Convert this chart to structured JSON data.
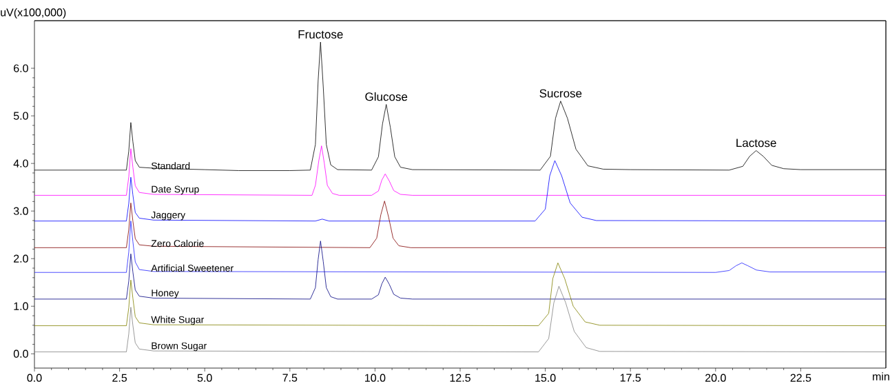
{
  "chart_data": {
    "type": "line",
    "xlabel": "min",
    "ylabel": "uV(x100,000)",
    "xlim": [
      0,
      25
    ],
    "ylim": [
      -0.3,
      7.0
    ],
    "xticks": [
      {
        "value": 0,
        "label": "0.0"
      },
      2.5,
      {
        "value": 5,
        "label": "5.0"
      },
      7.5,
      {
        "value": 10,
        "label": "10.0"
      },
      12.5,
      {
        "value": 15,
        "label": "15.0"
      },
      17.5,
      {
        "value": 20,
        "label": "20.0"
      },
      22.5
    ],
    "yticks": [
      {
        "value": 0,
        "label": "0.0"
      },
      {
        "value": 1,
        "label": "1.0"
      },
      {
        "value": 2,
        "label": "2.0"
      },
      {
        "value": 3,
        "label": "3.0"
      },
      {
        "value": 4,
        "label": "4.0"
      },
      {
        "value": 5,
        "label": "5.0"
      },
      {
        "value": 6,
        "label": "6.0"
      }
    ],
    "grid": false,
    "legend": false,
    "marker": "none",
    "line_style": "solid",
    "series": [
      {
        "name": "Standard",
        "color": "#000000",
        "x": [
          0,
          2.7,
          2.77,
          2.83,
          2.89,
          2.96,
          3.08,
          3.5,
          5.0,
          6.0,
          7.5,
          8.1,
          8.25,
          8.33,
          8.4,
          8.48,
          8.57,
          8.7,
          8.9,
          9.9,
          10.1,
          10.22,
          10.33,
          10.45,
          10.58,
          10.75,
          11.1,
          14.85,
          15.15,
          15.3,
          15.45,
          15.65,
          15.9,
          16.25,
          16.7,
          17.5,
          20.4,
          20.8,
          21.0,
          21.19,
          21.4,
          21.65,
          22.0,
          22.5,
          25
        ],
        "values": [
          3.86,
          3.86,
          4.26,
          4.86,
          4.46,
          4.06,
          3.92,
          3.9,
          3.87,
          3.85,
          3.85,
          3.86,
          4.4,
          5.74,
          6.55,
          5.61,
          4.4,
          3.97,
          3.87,
          3.86,
          4.14,
          4.83,
          5.24,
          4.76,
          4.14,
          3.92,
          3.87,
          3.86,
          4.15,
          4.95,
          5.31,
          4.95,
          4.3,
          3.95,
          3.88,
          3.87,
          3.86,
          3.94,
          4.15,
          4.27,
          4.15,
          3.96,
          3.89,
          3.87,
          3.87
        ]
      },
      {
        "name": "Date Syrup",
        "color": "#ff00ff",
        "x": [
          0,
          2.7,
          2.77,
          2.83,
          2.89,
          2.96,
          3.08,
          3.5,
          8.15,
          8.25,
          8.35,
          8.43,
          8.51,
          8.6,
          8.75,
          8.95,
          9.9,
          10.1,
          10.2,
          10.3,
          10.42,
          10.55,
          10.75,
          11.1,
          25
        ],
        "values": [
          3.33,
          3.33,
          3.72,
          4.31,
          3.92,
          3.53,
          3.39,
          3.35,
          3.33,
          3.54,
          4.06,
          4.37,
          4.01,
          3.54,
          3.37,
          3.33,
          3.33,
          3.42,
          3.65,
          3.78,
          3.63,
          3.43,
          3.35,
          3.33,
          3.33
        ]
      },
      {
        "name": "Jaggery",
        "color": "#0000ff",
        "x": [
          0,
          2.7,
          2.77,
          2.83,
          2.89,
          2.96,
          3.08,
          3.5,
          8.25,
          8.45,
          8.65,
          14.7,
          15.0,
          15.13,
          15.28,
          15.48,
          15.73,
          16.08,
          16.5,
          25
        ],
        "values": [
          2.79,
          2.79,
          3.16,
          3.71,
          3.34,
          2.97,
          2.85,
          2.81,
          2.79,
          2.83,
          2.79,
          2.79,
          3.04,
          3.74,
          4.06,
          3.74,
          3.17,
          2.87,
          2.8,
          2.79
        ]
      },
      {
        "name": "Zero Calorie",
        "color": "#800000",
        "x": [
          0,
          2.7,
          2.77,
          2.83,
          2.89,
          2.96,
          3.08,
          3.5,
          9.85,
          10.05,
          10.17,
          10.28,
          10.4,
          10.53,
          10.7,
          11.05,
          25
        ],
        "values": [
          2.23,
          2.23,
          2.61,
          3.17,
          2.79,
          2.42,
          2.29,
          2.26,
          2.23,
          2.43,
          2.92,
          3.21,
          2.87,
          2.43,
          2.27,
          2.23,
          2.23
        ]
      },
      {
        "name": "Artificial Sweetener",
        "color": "#2020ff",
        "x": [
          0,
          2.7,
          2.77,
          2.83,
          2.89,
          2.96,
          3.08,
          3.5,
          20.0,
          20.4,
          20.6,
          20.77,
          20.95,
          21.2,
          21.6,
          25
        ],
        "values": [
          1.71,
          1.71,
          2.14,
          2.79,
          2.36,
          1.93,
          1.77,
          1.73,
          1.71,
          1.75,
          1.85,
          1.91,
          1.85,
          1.76,
          1.72,
          1.72
        ]
      },
      {
        "name": "Honey",
        "color": "#000080",
        "x": [
          0,
          2.7,
          2.77,
          2.83,
          2.89,
          2.96,
          3.08,
          3.5,
          8.1,
          8.25,
          8.33,
          8.4,
          8.48,
          8.57,
          8.7,
          8.9,
          9.9,
          10.1,
          10.2,
          10.3,
          10.42,
          10.55,
          10.75,
          11.1,
          25
        ],
        "values": [
          1.15,
          1.15,
          1.53,
          2.1,
          1.72,
          1.34,
          1.21,
          1.17,
          1.15,
          1.39,
          1.98,
          2.37,
          1.94,
          1.39,
          1.2,
          1.15,
          1.15,
          1.24,
          1.47,
          1.61,
          1.46,
          1.25,
          1.17,
          1.15,
          1.15
        ]
      },
      {
        "name": "White Sugar",
        "color": "#808000",
        "x": [
          0,
          2.7,
          2.77,
          2.83,
          2.89,
          2.96,
          3.08,
          3.5,
          14.8,
          15.1,
          15.22,
          15.37,
          15.57,
          15.82,
          16.17,
          16.6,
          25
        ],
        "values": [
          0.59,
          0.59,
          0.97,
          1.55,
          1.17,
          0.78,
          0.65,
          0.61,
          0.59,
          0.85,
          1.58,
          1.91,
          1.58,
          1.0,
          0.67,
          0.6,
          0.59
        ]
      },
      {
        "name": "Brown Sugar",
        "color": "#808080",
        "x": [
          0,
          2.7,
          2.77,
          2.83,
          2.89,
          2.96,
          3.08,
          3.5,
          14.8,
          15.1,
          15.25,
          15.4,
          15.6,
          15.85,
          16.2,
          16.6,
          25
        ],
        "values": [
          0.04,
          0.04,
          0.42,
          0.98,
          0.6,
          0.23,
          0.1,
          0.06,
          0.04,
          0.32,
          1.07,
          1.42,
          1.07,
          0.47,
          0.13,
          0.05,
          0.04
        ]
      }
    ],
    "annotations": [
      {
        "text": "Fructose",
        "x": 8.4,
        "y": 6.55
      },
      {
        "text": "Glucose",
        "x": 10.33,
        "y": 5.24
      },
      {
        "text": "Sucrose",
        "x": 15.45,
        "y": 5.31
      },
      {
        "text": "Lactose",
        "x": 21.19,
        "y": 4.27
      }
    ]
  }
}
